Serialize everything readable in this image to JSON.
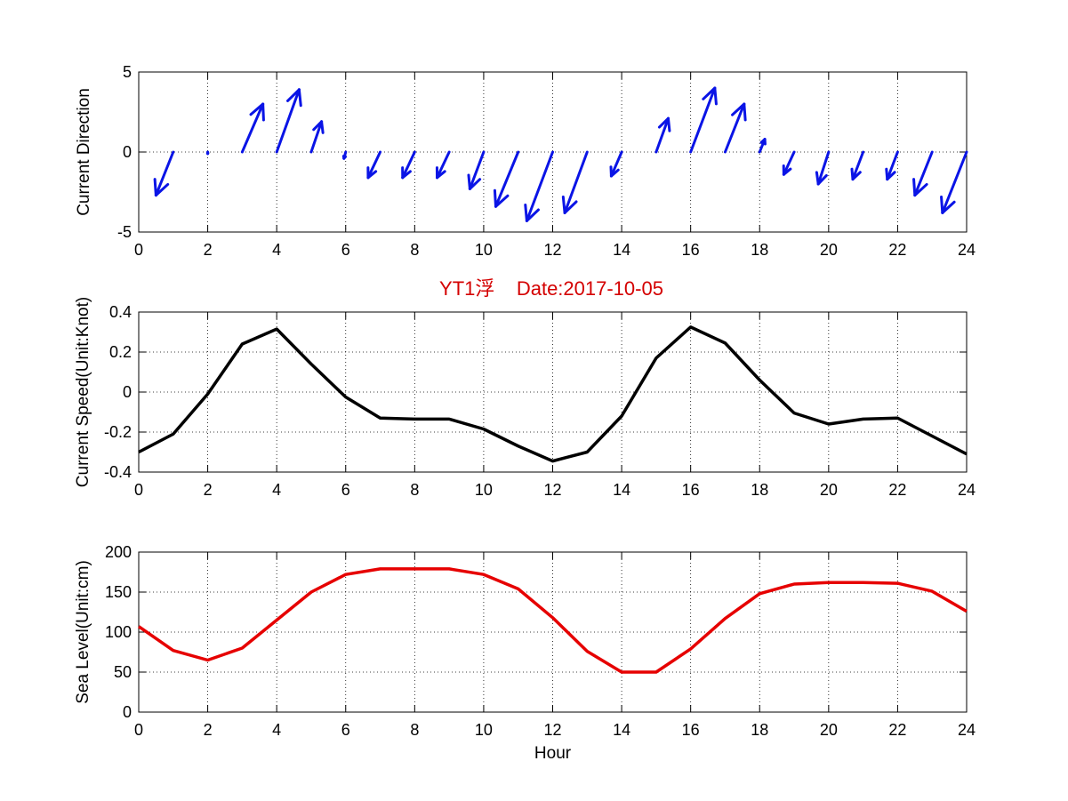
{
  "figure_title": "YT1浮    Date:2017-10-05",
  "colors": {
    "quiver": "#0a14e6",
    "speed": "#000000",
    "sea_level": "#e60000",
    "title": "#d40000",
    "grid": "#000000"
  },
  "chart_data": [
    {
      "type": "quiver",
      "ylabel": "Current Direction",
      "xlabel": "",
      "xlim": [
        0,
        24
      ],
      "ylim": [
        -5,
        5
      ],
      "xticks": [
        0,
        2,
        4,
        6,
        8,
        10,
        12,
        14,
        16,
        18,
        20,
        22,
        24
      ],
      "yticks": [
        -5,
        0,
        5
      ],
      "grid": true,
      "x": [
        0,
        1,
        2,
        3,
        4,
        5,
        6,
        7,
        8,
        9,
        10,
        11,
        12,
        13,
        14,
        15,
        16,
        17,
        18,
        19,
        20,
        21,
        22,
        23,
        24
      ],
      "u": [
        0,
        -0.5,
        0,
        0.6,
        0.65,
        0.3,
        -0.05,
        -0.35,
        -0.35,
        -0.35,
        -0.4,
        -0.65,
        -0.75,
        -0.65,
        -0.3,
        0.35,
        0.7,
        0.55,
        0.15,
        -0.3,
        -0.3,
        -0.3,
        -0.3,
        -0.5,
        -0.7
      ],
      "v": [
        0,
        -2.7,
        -0.1,
        3.0,
        3.9,
        1.9,
        -0.4,
        -1.6,
        -1.6,
        -1.6,
        -2.3,
        -3.4,
        -4.3,
        -3.8,
        -1.5,
        2.1,
        4.0,
        3.0,
        0.8,
        -1.4,
        -2.0,
        -1.7,
        -1.7,
        -2.7,
        -3.8
      ]
    },
    {
      "type": "line",
      "ylabel": "Current Speed(Unit:Knot)",
      "xlabel": "",
      "xlim": [
        0,
        24
      ],
      "ylim": [
        -0.4,
        0.4
      ],
      "xticks": [
        0,
        2,
        4,
        6,
        8,
        10,
        12,
        14,
        16,
        18,
        20,
        22,
        24
      ],
      "yticks": [
        -0.4,
        -0.2,
        0,
        0.2,
        0.4
      ],
      "grid": true,
      "x": [
        0,
        1,
        2,
        3,
        4,
        5,
        6,
        7,
        8,
        9,
        10,
        11,
        12,
        13,
        14,
        15,
        16,
        17,
        18,
        19,
        20,
        21,
        22,
        23,
        24
      ],
      "values": [
        -0.3,
        -0.21,
        -0.01,
        0.24,
        0.315,
        0.14,
        -0.025,
        -0.13,
        -0.135,
        -0.135,
        -0.185,
        -0.27,
        -0.345,
        -0.3,
        -0.12,
        0.17,
        0.325,
        0.245,
        0.06,
        -0.105,
        -0.16,
        -0.135,
        -0.13,
        -0.22,
        -0.31
      ]
    },
    {
      "type": "line",
      "ylabel": "Sea Level(Unit:cm)",
      "xlabel": "Hour",
      "xlim": [
        0,
        24
      ],
      "ylim": [
        0,
        200
      ],
      "xticks": [
        0,
        2,
        4,
        6,
        8,
        10,
        12,
        14,
        16,
        18,
        20,
        22,
        24
      ],
      "yticks": [
        0,
        50,
        100,
        150,
        200
      ],
      "grid": true,
      "x": [
        0,
        1,
        2,
        3,
        4,
        5,
        6,
        7,
        8,
        9,
        10,
        11,
        12,
        13,
        14,
        15,
        16,
        17,
        18,
        19,
        20,
        21,
        22,
        23,
        24
      ],
      "values": [
        107,
        77,
        65,
        80,
        115,
        150,
        172,
        179,
        179,
        179,
        172,
        154,
        118,
        76,
        50,
        50,
        79,
        117,
        148,
        160,
        162,
        162,
        161,
        151,
        126
      ]
    }
  ]
}
